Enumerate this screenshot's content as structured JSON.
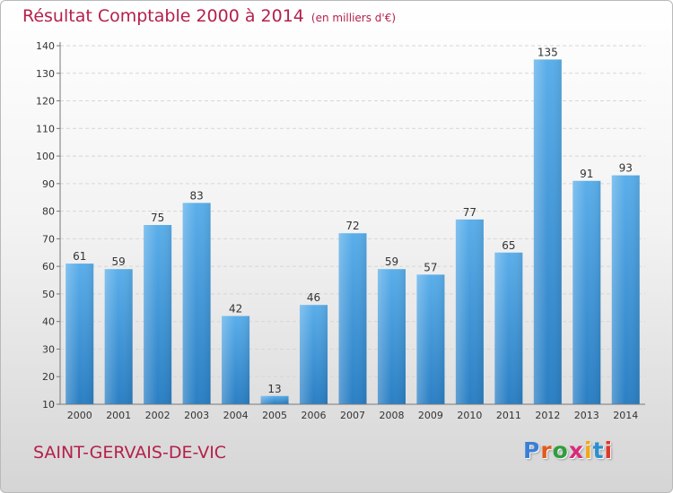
{
  "header": {
    "title": "Résultat Comptable 2000 à 2014",
    "unit": "(en milliers d'€)"
  },
  "footer": {
    "commune": "SAINT-GERVAIS-DE-VIC",
    "logo_text": "Proxiti"
  },
  "colors": {
    "title": "#b5204a",
    "bar_top": "#5aaeea",
    "bar_bottom": "#2a7fc4"
  },
  "chart_data": {
    "type": "bar",
    "title": "Résultat Comptable 2000 à 2014",
    "subtitle": "(en milliers d'€)",
    "categories": [
      "2000",
      "2001",
      "2002",
      "2003",
      "2004",
      "2005",
      "2006",
      "2007",
      "2008",
      "2009",
      "2010",
      "2011",
      "2012",
      "2013",
      "2014"
    ],
    "values": [
      61,
      59,
      75,
      83,
      42,
      13,
      46,
      72,
      59,
      57,
      77,
      65,
      135,
      91,
      93
    ],
    "ylim": [
      10,
      140
    ],
    "yticks": [
      10,
      20,
      30,
      40,
      50,
      60,
      70,
      80,
      90,
      100,
      110,
      120,
      130,
      140
    ],
    "grid": true,
    "legend": "none"
  }
}
